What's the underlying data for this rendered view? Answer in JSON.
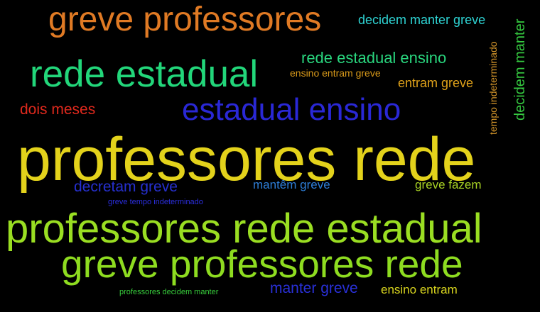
{
  "background": "#000000",
  "words": [
    {
      "id": "greve-professores",
      "text": "greve professores",
      "color": "#e07a24"
    },
    {
      "id": "decidem-manter-greve",
      "text": "decidem manter greve",
      "color": "#2ed3d3"
    },
    {
      "id": "rede-estadual-ensino",
      "text": "rede estadual ensino",
      "color": "#29d67e"
    },
    {
      "id": "rede-estadual",
      "text": "rede estadual",
      "color": "#22d67a"
    },
    {
      "id": "ensino-entram-greve",
      "text": "ensino entram greve",
      "color": "#d99a1a"
    },
    {
      "id": "entram-greve",
      "text": "entram greve",
      "color": "#e0a21a"
    },
    {
      "id": "tempo-indeterminado",
      "text": "tempo indeterminado",
      "color": "#d5962a"
    },
    {
      "id": "decidem-manter",
      "text": "decidem manter",
      "color": "#35c940"
    },
    {
      "id": "dois-meses",
      "text": "dois meses",
      "color": "#e0291d"
    },
    {
      "id": "estadual-ensino",
      "text": "estadual ensino",
      "color": "#2a28d6"
    },
    {
      "id": "professores-rede",
      "text": "professores rede",
      "color": "#e3d21b"
    },
    {
      "id": "decretam-greve",
      "text": "decretam greve",
      "color": "#2630d0"
    },
    {
      "id": "mantem-greve",
      "text": "mantêm greve",
      "color": "#2e7ed8"
    },
    {
      "id": "greve-fazem",
      "text": "greve fazem",
      "color": "#a9d324"
    },
    {
      "id": "greve-tempo-indeterminado",
      "text": "greve tempo indeterminado",
      "color": "#2b2ee0"
    },
    {
      "id": "professores-rede-estadual",
      "text": "professores rede estadual",
      "color": "#9ade22"
    },
    {
      "id": "greve-professores-rede",
      "text": "greve professores rede",
      "color": "#8edc20"
    },
    {
      "id": "professores-decidem-manter",
      "text": "professores decidem manter",
      "color": "#38cf3c"
    },
    {
      "id": "manter-greve",
      "text": "manter greve",
      "color": "#2930d8"
    },
    {
      "id": "ensino-entram",
      "text": "ensino entram",
      "color": "#d8d41e"
    }
  ]
}
